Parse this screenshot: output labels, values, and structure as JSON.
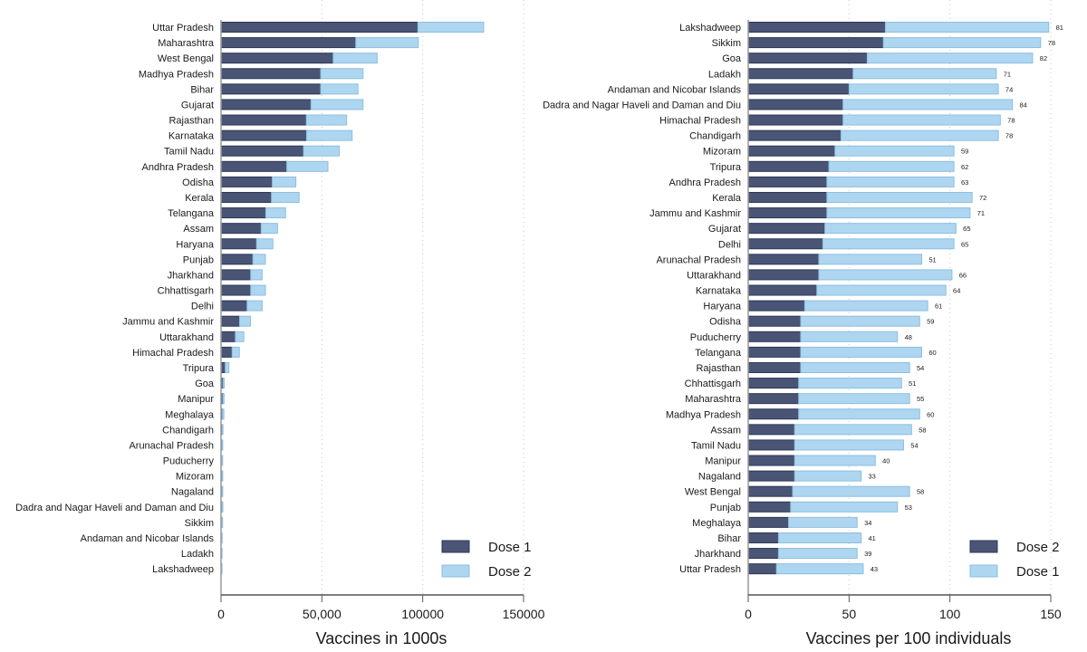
{
  "colors": {
    "dark": "#4a5576",
    "dark_border": "#2c3656",
    "light": "#aed6f1",
    "light_border": "#8cbfe0",
    "grid": "#c8c8c8",
    "axis": "#555555"
  },
  "chart_data": [
    {
      "type": "bar",
      "orientation": "horizontal",
      "stacked": true,
      "title": "",
      "xlabel": "Vaccines in 1000s",
      "ylabel": "",
      "xlim": [
        0,
        150000
      ],
      "xticks": [
        0,
        50000,
        100000,
        150000
      ],
      "xtick_labels": [
        "0",
        "50,000",
        "100000",
        "150000"
      ],
      "grid": true,
      "legend_position": "bottom-right",
      "categories": [
        "Uttar Pradesh",
        "Maharashtra",
        "West Bengal",
        "Madhya Pradesh",
        "Bihar",
        "Gujarat",
        "Rajasthan",
        "Karnataka",
        "Tamil Nadu",
        "Andhra Pradesh",
        "Odisha",
        "Kerala",
        "Telangana",
        "Assam",
        "Haryana",
        "Punjab",
        "Jharkhand",
        "Chhattisgarh",
        "Delhi",
        "Jammu and Kashmir",
        "Uttarakhand",
        "Himachal Pradesh",
        "Tripura",
        "Goa",
        "Manipur",
        "Meghalaya",
        "Chandigarh",
        "Arunachal Pradesh",
        "Puducherry",
        "Mizoram",
        "Nagaland",
        "Dadra and Nagar Haveli and Daman and Diu",
        "Sikkim",
        "Andaman and Nicobar Islands",
        "Ladakh",
        "Lakshadweep"
      ],
      "series": [
        {
          "name": "Dose 1",
          "color_key": "dark",
          "values": [
            97600,
            66800,
            55600,
            49400,
            49400,
            44600,
            42300,
            42400,
            40900,
            32600,
            25400,
            25000,
            22200,
            19900,
            17600,
            15800,
            14700,
            14700,
            12900,
            9200,
            7100,
            5500,
            2100,
            1000,
            900,
            700,
            600,
            500,
            400,
            500,
            500,
            500,
            400,
            200,
            150,
            40
          ]
        },
        {
          "name": "Dose 2",
          "color_key": "light",
          "values": [
            32600,
            31000,
            21800,
            21000,
            18500,
            25800,
            20000,
            22600,
            17700,
            20400,
            11700,
            13700,
            9800,
            8100,
            8100,
            6200,
            5700,
            7300,
            7500,
            5400,
            4200,
            3600,
            1800,
            600,
            600,
            700,
            300,
            300,
            400,
            200,
            200,
            400,
            200,
            200,
            100,
            20
          ]
        }
      ],
      "show_value_labels": false
    },
    {
      "type": "bar",
      "orientation": "horizontal",
      "stacked": true,
      "title": "",
      "xlabel": "Vaccines per 100 individuals",
      "ylabel": "",
      "xlim": [
        0,
        150
      ],
      "xticks": [
        0,
        50,
        100,
        150
      ],
      "xtick_labels": [
        "0",
        "50",
        "100",
        "150"
      ],
      "grid": true,
      "legend_position": "bottom-right",
      "categories": [
        "Lakshadweep",
        "Sikkim",
        "Goa",
        "Ladakh",
        "Andaman and Nicobar Islands",
        "Dadra and Nagar Haveli and Daman and Diu",
        "Himachal Pradesh",
        "Chandigarh",
        "Mizoram",
        "Tripura",
        "Andhra Pradesh",
        "Kerala",
        "Jammu and Kashmir",
        "Gujarat",
        "Delhi",
        "Arunachal Pradesh",
        "Uttarakhand",
        "Karnataka",
        "Haryana",
        "Odisha",
        "Puducherry",
        "Telangana",
        "Rajasthan",
        "Chhattisgarh",
        "Maharashtra",
        "Madhya Pradesh",
        "Assam",
        "Tamil Nadu",
        "Manipur",
        "Nagaland",
        "West Bengal",
        "Punjab",
        "Meghalaya",
        "Bihar",
        "Jharkhand",
        "Uttar Pradesh"
      ],
      "series": [
        {
          "name": "Dose 2",
          "color_key": "dark",
          "values": [
            68,
            67,
            59,
            52,
            50,
            47,
            47,
            46,
            43,
            40,
            39,
            39,
            39,
            38,
            37,
            35,
            35,
            34,
            28,
            26,
            26,
            26,
            26,
            25,
            25,
            25,
            23,
            23,
            23,
            23,
            22,
            21,
            20,
            15,
            15,
            14
          ]
        },
        {
          "name": "Dose 1",
          "color_key": "light",
          "values": [
            81,
            78,
            82,
            71,
            74,
            84,
            78,
            78,
            59,
            62,
            63,
            72,
            71,
            65,
            65,
            51,
            66,
            64,
            61,
            59,
            48,
            60,
            54,
            51,
            55,
            60,
            58,
            54,
            40,
            33,
            58,
            53,
            34,
            41,
            39,
            43
          ]
        }
      ],
      "show_value_labels": true
    }
  ]
}
